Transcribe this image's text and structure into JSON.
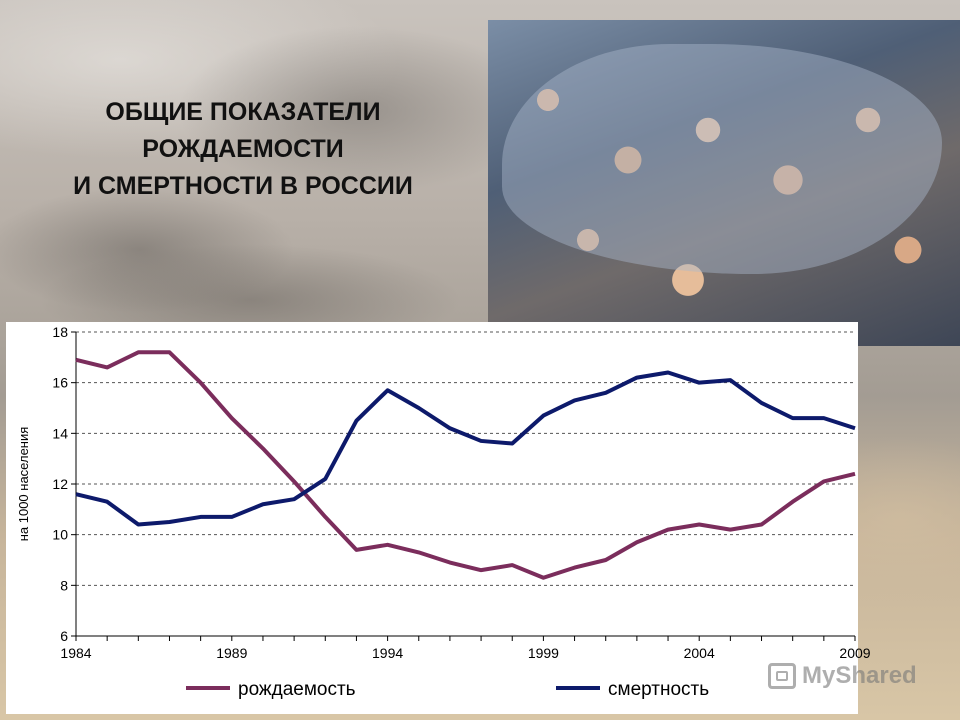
{
  "title_lines": [
    "ОБЩИЕ ПОКАЗАТЕЛИ",
    "РОЖДАЕМОСТИ",
    "И СМЕРТНОСТИ В РОССИИ"
  ],
  "watermark": "MyShared",
  "chart_data": {
    "type": "line",
    "ylabel": "на 1000 населения",
    "ylim": [
      6,
      18
    ],
    "yticks": [
      6,
      8,
      10,
      12,
      14,
      16,
      18
    ],
    "xlim": [
      1984,
      2009
    ],
    "xticks": [
      1984,
      1989,
      1994,
      1999,
      2004,
      2009
    ],
    "grid": "horizontal-dashed",
    "legend_position": "bottom",
    "x": [
      1984,
      1985,
      1986,
      1987,
      1988,
      1989,
      1990,
      1991,
      1992,
      1993,
      1994,
      1995,
      1996,
      1997,
      1998,
      1999,
      2000,
      2001,
      2002,
      2003,
      2004,
      2005,
      2006,
      2007,
      2008,
      2009
    ],
    "series": [
      {
        "name": "рождаемость",
        "color": "#7b2d5c",
        "values": [
          16.9,
          16.6,
          17.2,
          17.2,
          16.0,
          14.6,
          13.4,
          12.1,
          10.7,
          9.4,
          9.6,
          9.3,
          8.9,
          8.6,
          8.8,
          8.3,
          8.7,
          9.0,
          9.7,
          10.2,
          10.4,
          10.2,
          10.4,
          11.3,
          12.1,
          12.4
        ]
      },
      {
        "name": "смертность",
        "color": "#0d1a6b",
        "values": [
          11.6,
          11.3,
          10.4,
          10.5,
          10.7,
          10.7,
          11.2,
          11.4,
          12.2,
          14.5,
          15.7,
          15.0,
          14.2,
          13.7,
          13.6,
          14.7,
          15.3,
          15.6,
          16.2,
          16.4,
          16.0,
          16.1,
          15.2,
          14.6,
          14.6,
          14.2
        ]
      }
    ]
  }
}
